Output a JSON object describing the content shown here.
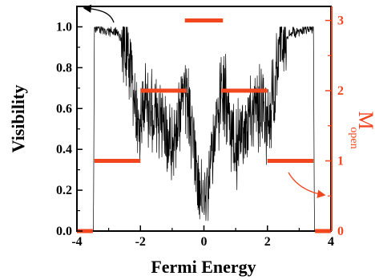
{
  "chart_data": {
    "type": "line",
    "title": "",
    "xlabel": "Fermi Energy",
    "ylabel": "Visibility",
    "y2label": {
      "main": "M",
      "sub": "open"
    },
    "xlim": [
      -4,
      4
    ],
    "ylim": [
      0,
      1.1
    ],
    "y2lim": [
      0,
      3.2
    ],
    "xticks": [
      "-4",
      "-2",
      "0",
      "2",
      "4"
    ],
    "xtick_values": [
      -4,
      -2,
      0,
      2,
      4
    ],
    "yticks": [
      "0.0",
      "0.2",
      "0.4",
      "0.6",
      "0.8",
      "1.0"
    ],
    "ytick_values": [
      0.0,
      0.2,
      0.4,
      0.6,
      0.8,
      1.0
    ],
    "y2ticks": [
      "0",
      "1",
      "2",
      "3"
    ],
    "y2tick_values": [
      0,
      1,
      2,
      3
    ],
    "grid": false,
    "legend": "none",
    "annotations": [
      "arrow pointing from visibility curve to left axis",
      "arrow pointing from M_open steps to right axis"
    ],
    "series": [
      {
        "axis": "left",
        "style": "noisy-line",
        "color": "#000000",
        "x": [
          -4.0,
          -3.55,
          -3.48,
          -3.45,
          -3.3,
          -3.0,
          -2.7,
          -2.5,
          -2.3,
          -2.1,
          -2.0,
          -1.9,
          -1.7,
          -1.5,
          -1.3,
          -1.1,
          -1.0,
          -0.8,
          -0.6,
          -0.45,
          -0.3,
          -0.2,
          -0.1,
          0.0,
          0.1,
          0.2,
          0.3,
          0.45,
          0.6,
          0.8,
          1.0,
          1.1,
          1.3,
          1.5,
          1.7,
          1.9,
          2.0,
          2.1,
          2.3,
          2.5,
          2.7,
          3.0,
          3.3,
          3.45,
          3.48,
          3.55,
          4.0
        ],
        "values": [
          0.0,
          0.0,
          0.0,
          1.0,
          0.99,
          0.98,
          0.97,
          0.93,
          0.8,
          0.6,
          0.5,
          0.62,
          0.6,
          0.57,
          0.52,
          0.45,
          0.4,
          0.55,
          0.72,
          0.55,
          0.45,
          0.3,
          0.2,
          0.1,
          0.2,
          0.3,
          0.45,
          0.55,
          0.72,
          0.55,
          0.4,
          0.45,
          0.52,
          0.57,
          0.6,
          0.62,
          0.5,
          0.6,
          0.8,
          0.93,
          0.97,
          0.98,
          0.99,
          1.0,
          0.0,
          0.0,
          0.0
        ]
      },
      {
        "axis": "right",
        "style": "steps",
        "color": "#f2461e",
        "segments": [
          {
            "x": [
              -4.0,
              -3.5
            ],
            "value": 0
          },
          {
            "x": [
              -3.45,
              -2.0
            ],
            "value": 1
          },
          {
            "x": [
              -2.0,
              -0.55
            ],
            "value": 2
          },
          {
            "x": [
              -0.6,
              0.6
            ],
            "value": 3
          },
          {
            "x": [
              0.55,
              2.0
            ],
            "value": 2
          },
          {
            "x": [
              2.0,
              3.45
            ],
            "value": 1
          },
          {
            "x": [
              3.5,
              4.0
            ],
            "value": 0
          }
        ]
      }
    ],
    "colors": {
      "visibility": "#000000",
      "m_open": "#f2461e"
    }
  }
}
